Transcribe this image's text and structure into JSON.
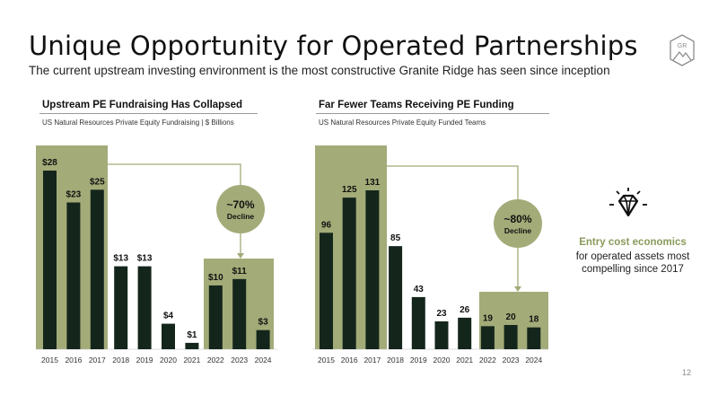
{
  "slide": {
    "title": "Unique Opportunity for Operated Partnerships",
    "subtitle": "The current upstream investing environment is the most constructive Granite Ridge has seen since inception",
    "logo_text": "GR",
    "page_number": "12"
  },
  "colors": {
    "bar": "#14261c",
    "highlight": "#a3ab78",
    "callout": "#a3ab78",
    "connector": "#a3ab78",
    "accent_text": "#8a9a5b"
  },
  "sidebar": {
    "icon": "diamond-icon",
    "heading": "Entry cost economics",
    "body_line1": "for operated assets most",
    "body_line2": "compelling since 2017"
  },
  "chart_data": [
    {
      "type": "bar",
      "title": "Upstream PE Fundraising Has Collapsed",
      "subtitle": "US Natural Resources Private Equity Fundraising | $ Billions",
      "categories": [
        "2015",
        "2016",
        "2017",
        "2018",
        "2019",
        "2020",
        "2021",
        "2022",
        "2023",
        "2024"
      ],
      "values": [
        28,
        23,
        25,
        13,
        13,
        4,
        1,
        10,
        11,
        3
      ],
      "data_labels": [
        "$28",
        "$23",
        "$25",
        "$13",
        "$13",
        "$4",
        "$1",
        "$10",
        "$11",
        "$3"
      ],
      "ylim": [
        0,
        30
      ],
      "grid": false,
      "highlight_groups": [
        [
          "2015",
          "2016",
          "2017"
        ],
        [
          "2022",
          "2023",
          "2024"
        ]
      ],
      "callout": {
        "value": "~70%",
        "label": "Decline"
      }
    },
    {
      "type": "bar",
      "title": "Far Fewer Teams Receiving PE Funding",
      "subtitle": "US Natural Resources Private Equity Funded Teams",
      "categories": [
        "2015",
        "2016",
        "2017",
        "2018",
        "2019",
        "2020",
        "2021",
        "2022",
        "2023",
        "2024"
      ],
      "values": [
        96,
        125,
        131,
        85,
        43,
        23,
        26,
        19,
        20,
        18
      ],
      "data_labels": [
        "96",
        "125",
        "131",
        "85",
        "43",
        "23",
        "26",
        "19",
        "20",
        "18"
      ],
      "ylim": [
        0,
        140
      ],
      "grid": false,
      "highlight_groups": [
        [
          "2015",
          "2016",
          "2017"
        ],
        [
          "2022",
          "2023",
          "2024"
        ]
      ],
      "callout": {
        "value": "~80%",
        "label": "Decline"
      }
    }
  ]
}
